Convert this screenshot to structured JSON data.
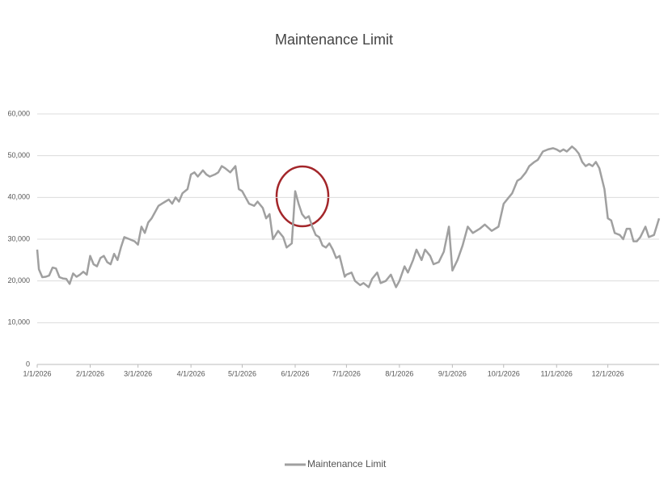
{
  "chart_data": {
    "type": "line",
    "title": "Maintenance Limit",
    "x": [
      "2026-01-01",
      "2026-01-02",
      "2026-01-04",
      "2026-01-06",
      "2026-01-08",
      "2026-01-10",
      "2026-01-12",
      "2026-01-14",
      "2026-01-16",
      "2026-01-18",
      "2026-01-20",
      "2026-01-22",
      "2026-01-24",
      "2026-01-26",
      "2026-01-28",
      "2026-01-30",
      "2026-02-01",
      "2026-02-03",
      "2026-02-05",
      "2026-02-07",
      "2026-02-09",
      "2026-02-11",
      "2026-02-13",
      "2026-02-15",
      "2026-02-17",
      "2026-02-19",
      "2026-02-21",
      "2026-02-24",
      "2026-02-27",
      "2026-03-01",
      "2026-03-03",
      "2026-03-05",
      "2026-03-07",
      "2026-03-09",
      "2026-03-11",
      "2026-03-13",
      "2026-03-15",
      "2026-03-17",
      "2026-03-19",
      "2026-03-21",
      "2026-03-23",
      "2026-03-25",
      "2026-03-27",
      "2026-03-30",
      "2026-04-01",
      "2026-04-03",
      "2026-04-05",
      "2026-04-08",
      "2026-04-10",
      "2026-04-12",
      "2026-04-15",
      "2026-04-17",
      "2026-04-19",
      "2026-04-21",
      "2026-04-24",
      "2026-04-27",
      "2026-04-29",
      "2026-05-01",
      "2026-05-03",
      "2026-05-05",
      "2026-05-08",
      "2026-05-10",
      "2026-05-13",
      "2026-05-15",
      "2026-05-17",
      "2026-05-19",
      "2026-05-22",
      "2026-05-25",
      "2026-05-27",
      "2026-05-30",
      "2026-06-01",
      "2026-06-03",
      "2026-06-05",
      "2026-06-07",
      "2026-06-09",
      "2026-06-11",
      "2026-06-13",
      "2026-06-15",
      "2026-06-17",
      "2026-06-19",
      "2026-06-21",
      "2026-06-23",
      "2026-06-25",
      "2026-06-27",
      "2026-06-30",
      "2026-07-01",
      "2026-07-04",
      "2026-07-06",
      "2026-07-09",
      "2026-07-11",
      "2026-07-14",
      "2026-07-16",
      "2026-07-19",
      "2026-07-21",
      "2026-07-24",
      "2026-07-27",
      "2026-07-30",
      "2026-08-01",
      "2026-08-04",
      "2026-08-06",
      "2026-08-09",
      "2026-08-11",
      "2026-08-14",
      "2026-08-16",
      "2026-08-19",
      "2026-08-21",
      "2026-08-24",
      "2026-08-27",
      "2026-08-30",
      "2026-09-01",
      "2026-09-04",
      "2026-09-07",
      "2026-09-10",
      "2026-09-13",
      "2026-09-17",
      "2026-09-20",
      "2026-09-24",
      "2026-09-28",
      "2026-10-01",
      "2026-10-04",
      "2026-10-06",
      "2026-10-09",
      "2026-10-11",
      "2026-10-14",
      "2026-10-16",
      "2026-10-19",
      "2026-10-21",
      "2026-10-24",
      "2026-10-27",
      "2026-10-30",
      "2026-11-01",
      "2026-11-03",
      "2026-11-05",
      "2026-11-07",
      "2026-11-10",
      "2026-11-12",
      "2026-11-14",
      "2026-11-16",
      "2026-11-18",
      "2026-11-20",
      "2026-11-22",
      "2026-11-24",
      "2026-11-26",
      "2026-11-29",
      "2026-12-01",
      "2026-12-03",
      "2026-12-05",
      "2026-12-08",
      "2026-12-10",
      "2026-12-12",
      "2026-12-14",
      "2026-12-16",
      "2026-12-18",
      "2026-12-20",
      "2026-12-23",
      "2026-12-25",
      "2026-12-28",
      "2026-12-31"
    ],
    "series": [
      {
        "name": "Maintenance Limit",
        "color": "#a0a0a0",
        "values": [
          27500,
          22800,
          20900,
          21000,
          21300,
          23200,
          23000,
          20900,
          20600,
          20500,
          19300,
          21800,
          21000,
          21500,
          22200,
          21500,
          26000,
          24000,
          23500,
          25500,
          26000,
          24500,
          24000,
          26500,
          25000,
          28000,
          30500,
          30000,
          29500,
          28700,
          33000,
          31500,
          34000,
          35000,
          36500,
          38000,
          38500,
          39000,
          39500,
          38500,
          40000,
          39000,
          41000,
          42000,
          45500,
          46000,
          45000,
          46500,
          45500,
          45000,
          45500,
          46000,
          47500,
          47000,
          46000,
          47500,
          42000,
          41500,
          40000,
          38500,
          38000,
          39000,
          37500,
          35000,
          36000,
          30000,
          32000,
          30500,
          28000,
          29000,
          41500,
          38500,
          36000,
          35000,
          35500,
          33000,
          31000,
          30500,
          28500,
          28000,
          29000,
          27500,
          25500,
          26000,
          21000,
          21500,
          22000,
          20000,
          19000,
          19500,
          18500,
          20500,
          22000,
          19500,
          20000,
          21500,
          18500,
          20000,
          23500,
          22000,
          25000,
          27500,
          25000,
          27500,
          26000,
          24000,
          24500,
          27000,
          33000,
          22500,
          25000,
          28500,
          33000,
          31500,
          32500,
          33500,
          32000,
          33000,
          38500,
          40000,
          41000,
          44000,
          44500,
          46000,
          47500,
          48500,
          49000,
          51000,
          51500,
          51800,
          51500,
          51000,
          51500,
          51000,
          52200,
          51500,
          50500,
          48500,
          47500,
          48000,
          47500,
          48500,
          47000,
          42000,
          35000,
          34500,
          31500,
          31000,
          30000,
          32500,
          32500,
          29500,
          29500,
          30500,
          33000,
          30500,
          31000,
          35000
        ]
      }
    ],
    "xlim": [
      "2026-01-01",
      "2026-12-31"
    ],
    "xticks": [
      {
        "value": "2026-01-01",
        "label": "1/1/2026"
      },
      {
        "value": "2026-02-01",
        "label": "2/1/2026"
      },
      {
        "value": "2026-03-01",
        "label": "3/1/2026"
      },
      {
        "value": "2026-04-01",
        "label": "4/1/2026"
      },
      {
        "value": "2026-05-01",
        "label": "5/1/2026"
      },
      {
        "value": "2026-06-01",
        "label": "6/1/2026"
      },
      {
        "value": "2026-07-01",
        "label": "7/1/2026"
      },
      {
        "value": "2026-08-01",
        "label": "8/1/2026"
      },
      {
        "value": "2026-09-01",
        "label": "9/1/2026"
      },
      {
        "value": "2026-10-01",
        "label": "10/1/2026"
      },
      {
        "value": "2026-11-01",
        "label": "11/1/2026"
      },
      {
        "value": "2026-12-01",
        "label": "12/1/2026"
      }
    ],
    "ylim": [
      0,
      60000
    ],
    "yticks": [
      0,
      {
        "value": 10000,
        "label": "10,000"
      },
      {
        "value": 20000,
        "label": "20,000"
      },
      {
        "value": 30000,
        "label": "30,000"
      },
      {
        "value": 40000,
        "label": "40,000"
      },
      {
        "value": 50000,
        "label": "50,000"
      },
      {
        "value": 60000,
        "label": "60,000"
      }
    ],
    "grid": true,
    "legend": "bottom"
  }
}
